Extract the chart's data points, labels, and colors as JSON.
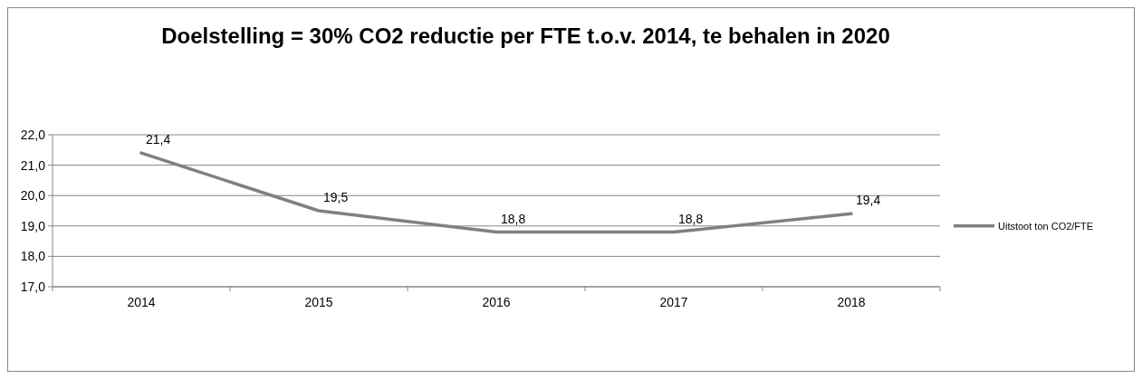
{
  "chart_data": {
    "type": "line",
    "title": "Doelstelling = 30% CO2 reductie per FTE t.o.v. 2014, te behalen in 2020",
    "categories": [
      "2014",
      "2015",
      "2016",
      "2017",
      "2018"
    ],
    "series": [
      {
        "name": "Uitstoot ton CO2/FTE",
        "color": "#808080",
        "values": [
          21.4,
          19.5,
          18.8,
          18.8,
          19.4
        ],
        "value_labels": [
          "21,4",
          "19,5",
          "18,8",
          "18,8",
          "19,4"
        ]
      }
    ],
    "ylim": [
      17,
      22
    ],
    "yticks": [
      {
        "value": 17,
        "label": "17,0"
      },
      {
        "value": 18,
        "label": "18,0"
      },
      {
        "value": 19,
        "label": "19,0"
      },
      {
        "value": 20,
        "label": "20,0"
      },
      {
        "value": 21,
        "label": "21,0"
      },
      {
        "value": 22,
        "label": "22,0"
      }
    ],
    "grid": "y",
    "legend": "right",
    "marker": "none",
    "line_style": "solid"
  }
}
